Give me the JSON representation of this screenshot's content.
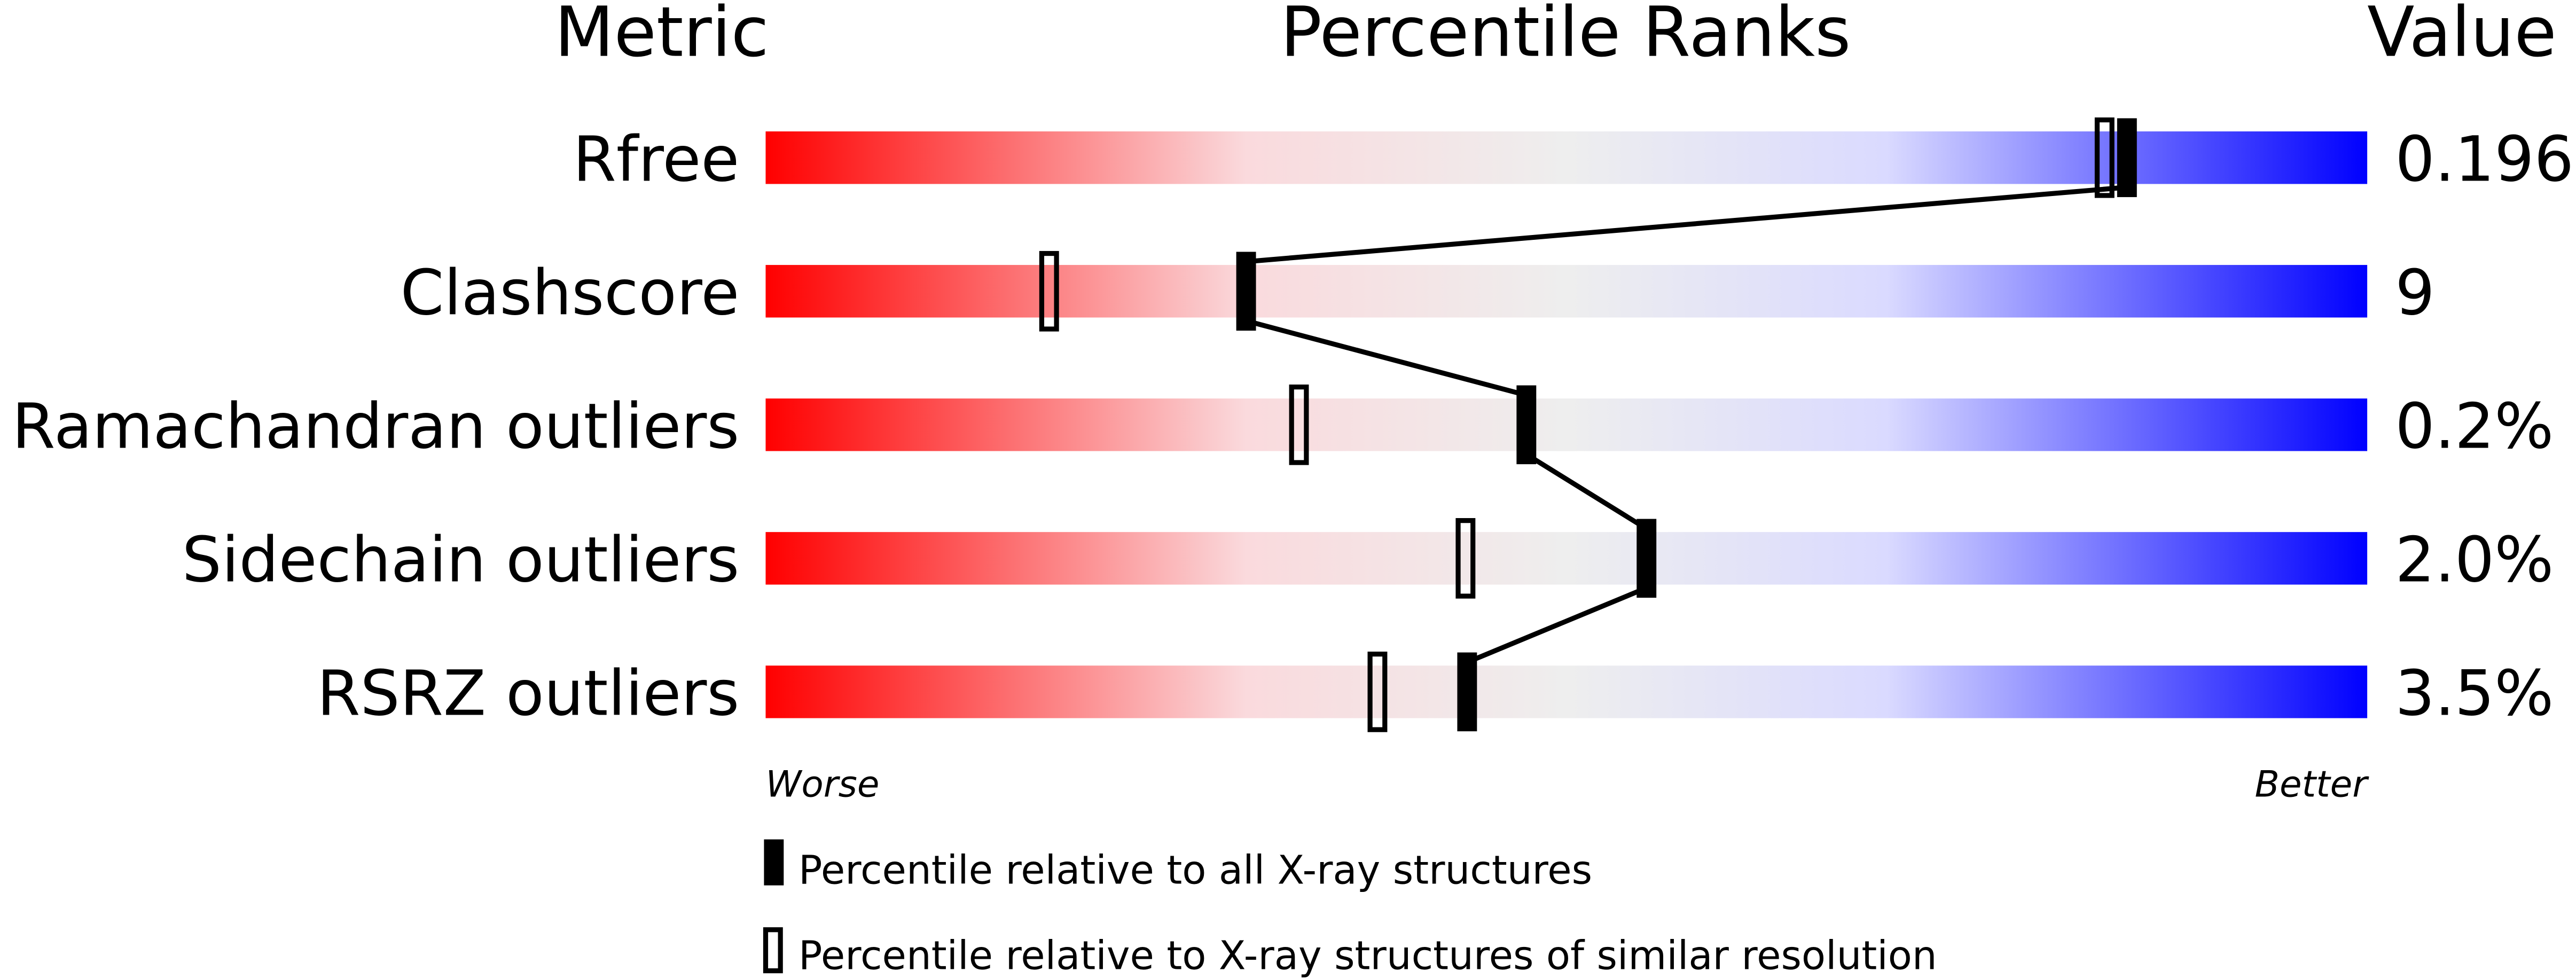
{
  "chart_data": {
    "type": "percentile-slider",
    "headers": {
      "metric": "Metric",
      "ranks": "Percentile Ranks",
      "value": "Value"
    },
    "axis": {
      "min_label": "Worse",
      "max_label": "Better",
      "range": [
        0,
        100
      ]
    },
    "gradient_colors": [
      "#ff0000",
      "#fadadd",
      "#eeeeee",
      "#dadaff",
      "#0000ff"
    ],
    "rows": [
      {
        "metric": "Rfree",
        "value": "0.196",
        "percentile_all": 85,
        "percentile_similar": 83.6
      },
      {
        "metric": "Clashscore",
        "value": "9",
        "percentile_all": 30,
        "percentile_similar": 17.7
      },
      {
        "metric": "Ramachandran outliers",
        "value": "0.2%",
        "percentile_all": 47.5,
        "percentile_similar": 33.3
      },
      {
        "metric": "Sidechain outliers",
        "value": "2.0%",
        "percentile_all": 55,
        "percentile_similar": 43.7
      },
      {
        "metric": "RSRZ outliers",
        "value": "3.5%",
        "percentile_all": 43.8,
        "percentile_similar": 38.2
      }
    ],
    "legend": [
      {
        "marker": "filled",
        "label": "Percentile relative to all X-ray structures"
      },
      {
        "marker": "outline",
        "label": "Percentile relative to X-ray structures of similar resolution"
      }
    ]
  }
}
